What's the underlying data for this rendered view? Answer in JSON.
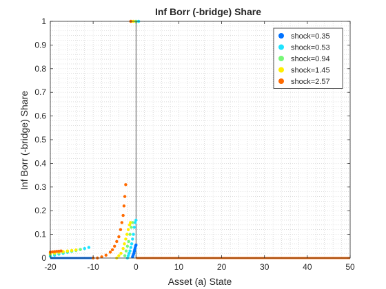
{
  "chart_data": {
    "type": "scatter",
    "title": "Inf Borr (-bridge) Share",
    "xlabel": "Asset (a) State",
    "ylabel": "Inf Borr (-bridge) Share",
    "xlim": [
      -20,
      50
    ],
    "ylim": [
      0,
      1
    ],
    "xticks": [
      "-20",
      "-10",
      "0",
      "10",
      "20",
      "30",
      "40",
      "50"
    ],
    "yticks": [
      "0",
      "0.1",
      "0.2",
      "0.3",
      "0.4",
      "0.5",
      "0.6",
      "0.7",
      "0.8",
      "0.9",
      "1"
    ],
    "grid": "minor dotted",
    "legend_location": "top-right",
    "vline_x": 0,
    "series": [
      {
        "name": "shock=0.35",
        "color": "#0072ff",
        "x": [
          -0.8,
          -0.7,
          -0.6,
          -0.5,
          -0.4,
          -0.3,
          -0.2,
          -0.1,
          0.0
        ],
        "y": [
          0.005,
          0.01,
          0.015,
          0.02,
          0.028,
          0.035,
          0.042,
          0.05,
          0.055
        ]
      },
      {
        "name": "shock=0.53",
        "color": "#1ee3ff",
        "x": [
          -20,
          -19,
          -18,
          -17,
          -16,
          -15,
          -14,
          -13,
          -12,
          -11,
          -2.0,
          -1.8,
          -1.6,
          -1.4,
          -1.2,
          -1.0,
          -0.8,
          -0.6,
          -0.4,
          -0.2,
          0.0
        ],
        "y": [
          0.008,
          0.012,
          0.016,
          0.02,
          0.024,
          0.028,
          0.032,
          0.036,
          0.04,
          0.045,
          0.0,
          0.01,
          0.02,
          0.03,
          0.045,
          0.06,
          0.08,
          0.1,
          0.13,
          0.15,
          0.16
        ]
      },
      {
        "name": "shock=0.94",
        "color": "#77f777",
        "x": [
          -20,
          -19,
          -18,
          -17,
          -16,
          -15,
          -14,
          -13,
          -2.6,
          -2.3,
          -2.0,
          -1.7,
          -1.4,
          -1.1,
          -0.8
        ],
        "y": [
          0.015,
          0.018,
          0.021,
          0.024,
          0.027,
          0.03,
          0.033,
          0.036,
          0.01,
          0.03,
          0.05,
          0.07,
          0.1,
          0.13,
          0.15
        ]
      },
      {
        "name": "shock=1.45",
        "color": "#ffee00",
        "x": [
          -20,
          -19,
          -18,
          -17,
          -16,
          -15,
          -14,
          -4.5,
          -4.0,
          -3.5,
          -3.0,
          -2.7,
          -2.4,
          -2.1,
          -1.8,
          -1.5,
          -1.3
        ],
        "y": [
          0.02,
          0.022,
          0.025,
          0.027,
          0.03,
          0.032,
          0.034,
          0.0,
          0.01,
          0.02,
          0.04,
          0.06,
          0.08,
          0.1,
          0.12,
          0.14,
          0.15
        ]
      },
      {
        "name": "shock=2.57",
        "color": "#ff6a00",
        "x": [
          -20,
          -19.5,
          -19,
          -18.5,
          -18,
          -17.5,
          -10,
          -9,
          -8,
          -7,
          -6,
          -5.5,
          -5,
          -4.5,
          -4,
          -3.6,
          -3.3,
          -3.0,
          -2.8,
          -2.6,
          -2.4
        ],
        "y": [
          0.025,
          0.026,
          0.027,
          0.028,
          0.029,
          0.03,
          0.0,
          0.0,
          0.005,
          0.012,
          0.025,
          0.035,
          0.05,
          0.07,
          0.09,
          0.12,
          0.15,
          0.18,
          0.22,
          0.26,
          0.31
        ]
      }
    ],
    "baseline_segments": [
      {
        "series": "shock=2.57",
        "x_from": 0,
        "x_to": 50,
        "y": 0
      },
      {
        "series": "shock=0.35",
        "x_from": -20,
        "x_to": -10,
        "y": 0
      }
    ],
    "top_points": [
      {
        "series": "shock=2.57",
        "x": -1.2,
        "y": 1
      },
      {
        "series": "shock=1.45",
        "x": -0.6,
        "y": 1
      },
      {
        "series": "shock=0.94",
        "x": 0.0,
        "y": 1
      },
      {
        "series": "shock=0.53",
        "x": 0.6,
        "y": 1
      }
    ]
  }
}
